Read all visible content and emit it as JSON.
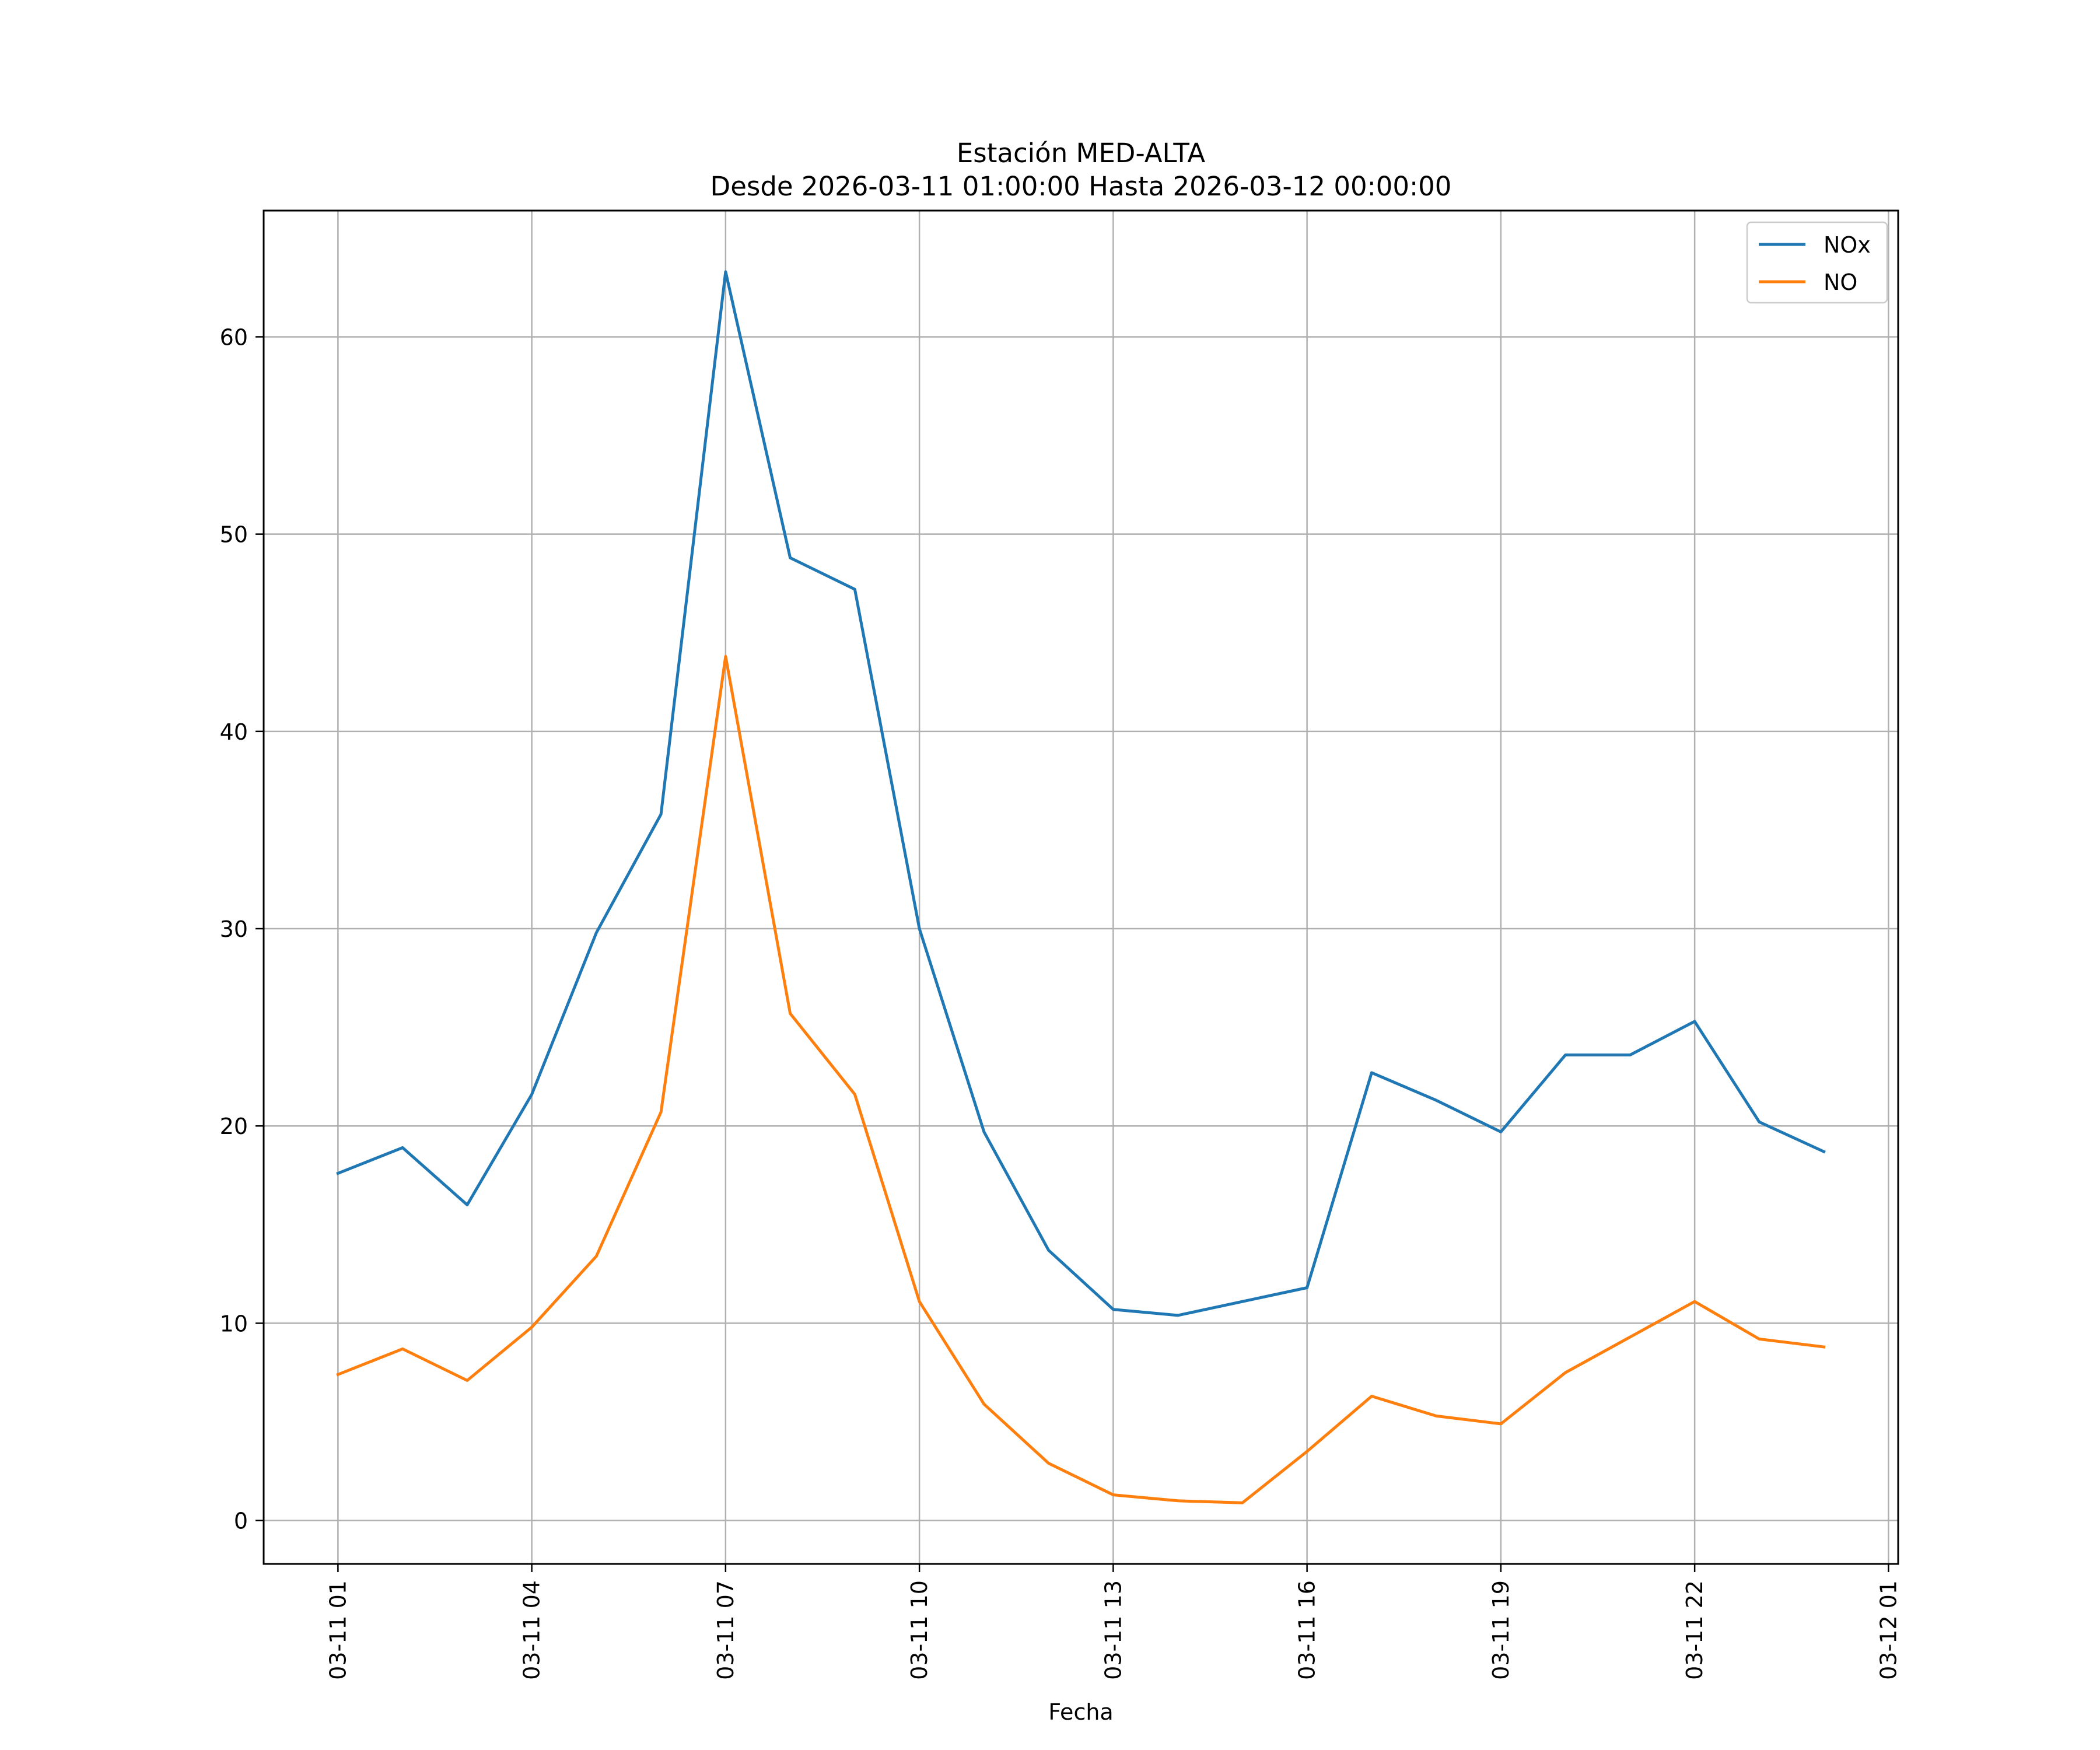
{
  "chart_data": {
    "type": "line",
    "title": "Estación MED-ALTA",
    "subtitle": "Desde 2026-03-11 01:00:00 Hasta 2026-03-12 00:00:00",
    "xlabel": "Fecha",
    "ylabel": "",
    "x": [
      "2026-03-11 01:00",
      "2026-03-11 02:00",
      "2026-03-11 03:00",
      "2026-03-11 04:00",
      "2026-03-11 05:00",
      "2026-03-11 06:00",
      "2026-03-11 07:00",
      "2026-03-11 08:00",
      "2026-03-11 09:00",
      "2026-03-11 10:00",
      "2026-03-11 11:00",
      "2026-03-11 12:00",
      "2026-03-11 13:00",
      "2026-03-11 14:00",
      "2026-03-11 15:00",
      "2026-03-11 16:00",
      "2026-03-11 17:00",
      "2026-03-11 18:00",
      "2026-03-11 19:00",
      "2026-03-11 20:00",
      "2026-03-11 21:00",
      "2026-03-11 22:00",
      "2026-03-11 23:00",
      "2026-03-12 00:00"
    ],
    "series": [
      {
        "name": "NOx",
        "color": "#1f77b4",
        "values": [
          17.6,
          18.9,
          16.0,
          21.6,
          29.8,
          35.8,
          63.3,
          48.8,
          47.2,
          30.0,
          19.7,
          13.7,
          10.7,
          10.4,
          11.1,
          11.8,
          22.7,
          21.3,
          19.7,
          23.6,
          23.6,
          25.3,
          20.2,
          18.7
        ]
      },
      {
        "name": "NO",
        "color": "#ff7f0e",
        "values": [
          7.4,
          8.7,
          7.1,
          9.8,
          13.4,
          20.7,
          43.8,
          25.7,
          21.6,
          11.1,
          5.9,
          2.9,
          1.3,
          1.0,
          0.9,
          3.5,
          6.3,
          5.3,
          4.9,
          7.5,
          9.3,
          11.1,
          9.2,
          8.8
        ]
      }
    ],
    "x_ticks": [
      {
        "x": "2026-03-11 01:00",
        "label": "03-11 01"
      },
      {
        "x": "2026-03-11 04:00",
        "label": "03-11 04"
      },
      {
        "x": "2026-03-11 07:00",
        "label": "03-11 07"
      },
      {
        "x": "2026-03-11 10:00",
        "label": "03-11 10"
      },
      {
        "x": "2026-03-11 13:00",
        "label": "03-11 13"
      },
      {
        "x": "2026-03-11 16:00",
        "label": "03-11 16"
      },
      {
        "x": "2026-03-11 19:00",
        "label": "03-11 19"
      },
      {
        "x": "2026-03-11 22:00",
        "label": "03-11 22"
      },
      {
        "x": "2026-03-12 01:00",
        "label": "03-12 01"
      }
    ],
    "y_ticks": [
      0,
      10,
      20,
      30,
      40,
      50,
      60
    ],
    "xlim": [
      "2026-03-10 23:51",
      "2026-03-12 01:09"
    ],
    "ylim": [
      -2.2,
      66.4
    ],
    "grid": true,
    "legend_position": "top-right"
  }
}
